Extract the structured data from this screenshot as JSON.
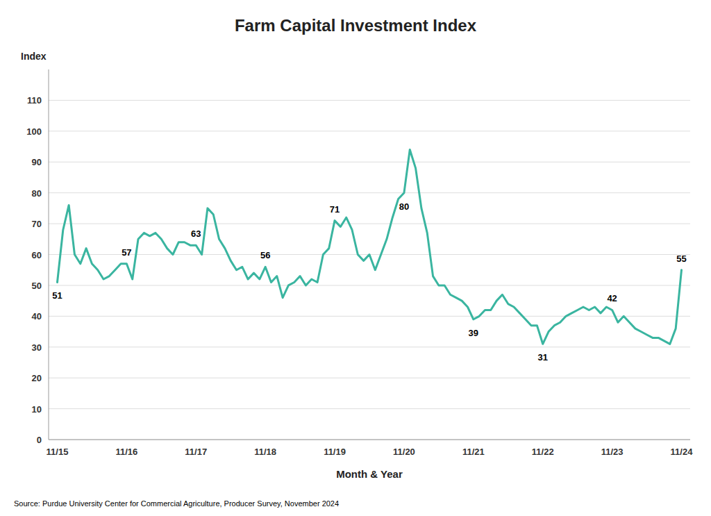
{
  "chart_data": {
    "type": "line",
    "title": "Farm Capital Investment Index",
    "x_label": "Month & Year",
    "y_label": "Index",
    "source": "Source: Purdue University Center for Commercial Agriculture, Producer Survey, November 2024",
    "color": "#3ab5a0",
    "grid": true,
    "ylim": [
      0,
      120
    ],
    "yticks": [
      0,
      10,
      20,
      30,
      40,
      50,
      60,
      70,
      80,
      90,
      100,
      110
    ],
    "categories": [
      "11/15",
      null,
      null,
      null,
      null,
      null,
      null,
      null,
      null,
      null,
      null,
      null,
      "11/16",
      null,
      null,
      null,
      null,
      null,
      null,
      null,
      null,
      null,
      null,
      null,
      "11/17",
      null,
      null,
      null,
      null,
      null,
      null,
      null,
      null,
      null,
      null,
      null,
      "11/18",
      null,
      null,
      null,
      null,
      null,
      null,
      null,
      null,
      null,
      null,
      null,
      "11/19",
      null,
      null,
      null,
      null,
      null,
      null,
      null,
      null,
      null,
      null,
      null,
      "11/20",
      null,
      null,
      null,
      null,
      null,
      null,
      null,
      null,
      null,
      null,
      null,
      "11/21",
      null,
      null,
      null,
      null,
      null,
      null,
      null,
      null,
      null,
      null,
      null,
      "11/22",
      null,
      null,
      null,
      null,
      null,
      null,
      null,
      null,
      null,
      null,
      null,
      "11/23",
      null,
      null,
      null,
      null,
      null,
      null,
      null,
      null,
      null,
      null,
      null,
      "11/24"
    ],
    "values": [
      51,
      68,
      76,
      60,
      57,
      62,
      57,
      55,
      52,
      53,
      55,
      57,
      57,
      52,
      65,
      67,
      66,
      67,
      65,
      62,
      60,
      64,
      64,
      63,
      63,
      60,
      75,
      73,
      65,
      62,
      58,
      55,
      56,
      52,
      54,
      52,
      56,
      51,
      53,
      46,
      50,
      51,
      53,
      50,
      52,
      51,
      60,
      62,
      71,
      69,
      72,
      68,
      60,
      58,
      60,
      55,
      60,
      65,
      72,
      78,
      80,
      94,
      88,
      75,
      67,
      53,
      50,
      50,
      47,
      46,
      45,
      43,
      39,
      40,
      42,
      42,
      45,
      47,
      44,
      43,
      41,
      39,
      37,
      37,
      31,
      35,
      37,
      38,
      40,
      41,
      42,
      43,
      42,
      43,
      41,
      43,
      42,
      38,
      40,
      38,
      36,
      35,
      34,
      33,
      33,
      32,
      31,
      36,
      55
    ],
    "annotations": [
      {
        "position": 0,
        "value": 51
      },
      {
        "position": 12,
        "value": 57
      },
      {
        "position": 24,
        "value": 63
      },
      {
        "position": 36,
        "value": 56
      },
      {
        "position": 48,
        "value": 71
      },
      {
        "position": 60,
        "value": 80
      },
      {
        "position": 72,
        "value": 39
      },
      {
        "position": 84,
        "value": 31
      },
      {
        "position": 96,
        "value": 42
      },
      {
        "position": 108,
        "value": 55
      }
    ]
  }
}
